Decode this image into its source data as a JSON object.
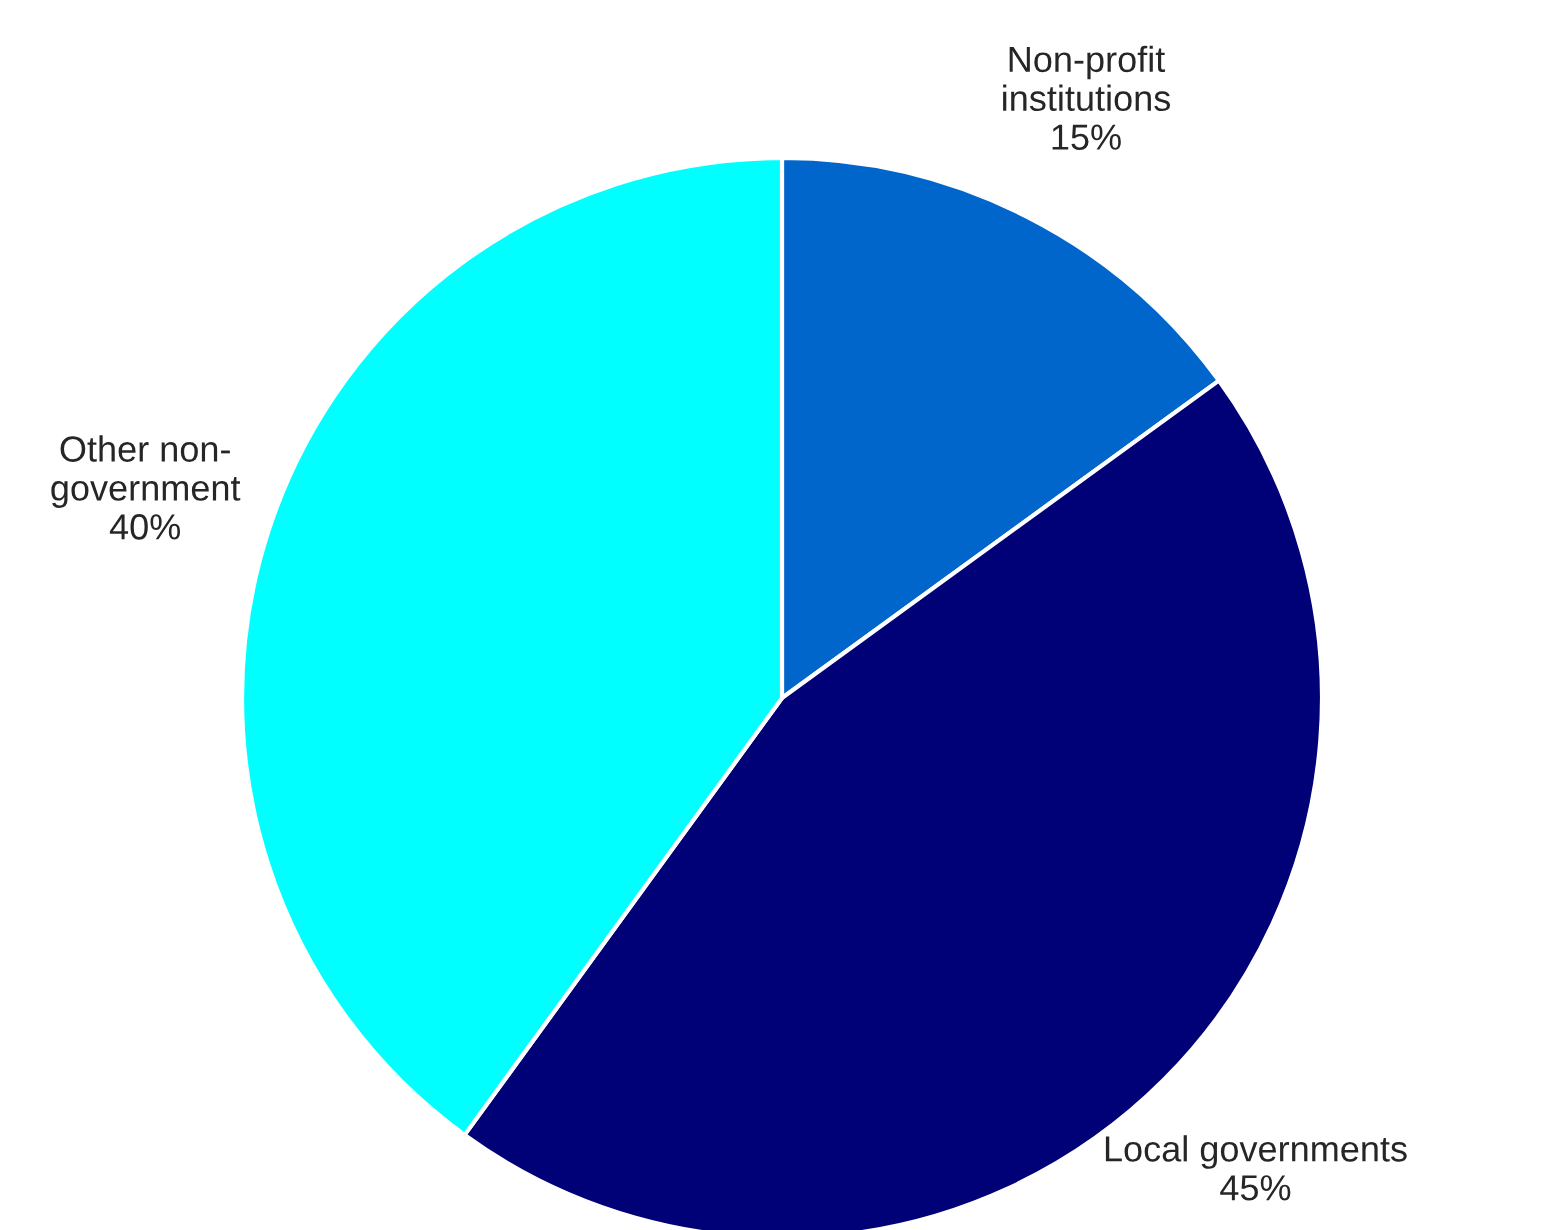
{
  "chart_data": {
    "type": "pie",
    "categories": [
      "Non-profit\ninstitutions",
      "Local governments",
      "Other non-\ngovernment"
    ],
    "values": [
      15,
      45,
      40
    ],
    "value_labels": [
      "15%",
      "45%",
      "40%"
    ],
    "colors": [
      "#0066cc",
      "#000077",
      "#00ffff"
    ]
  }
}
